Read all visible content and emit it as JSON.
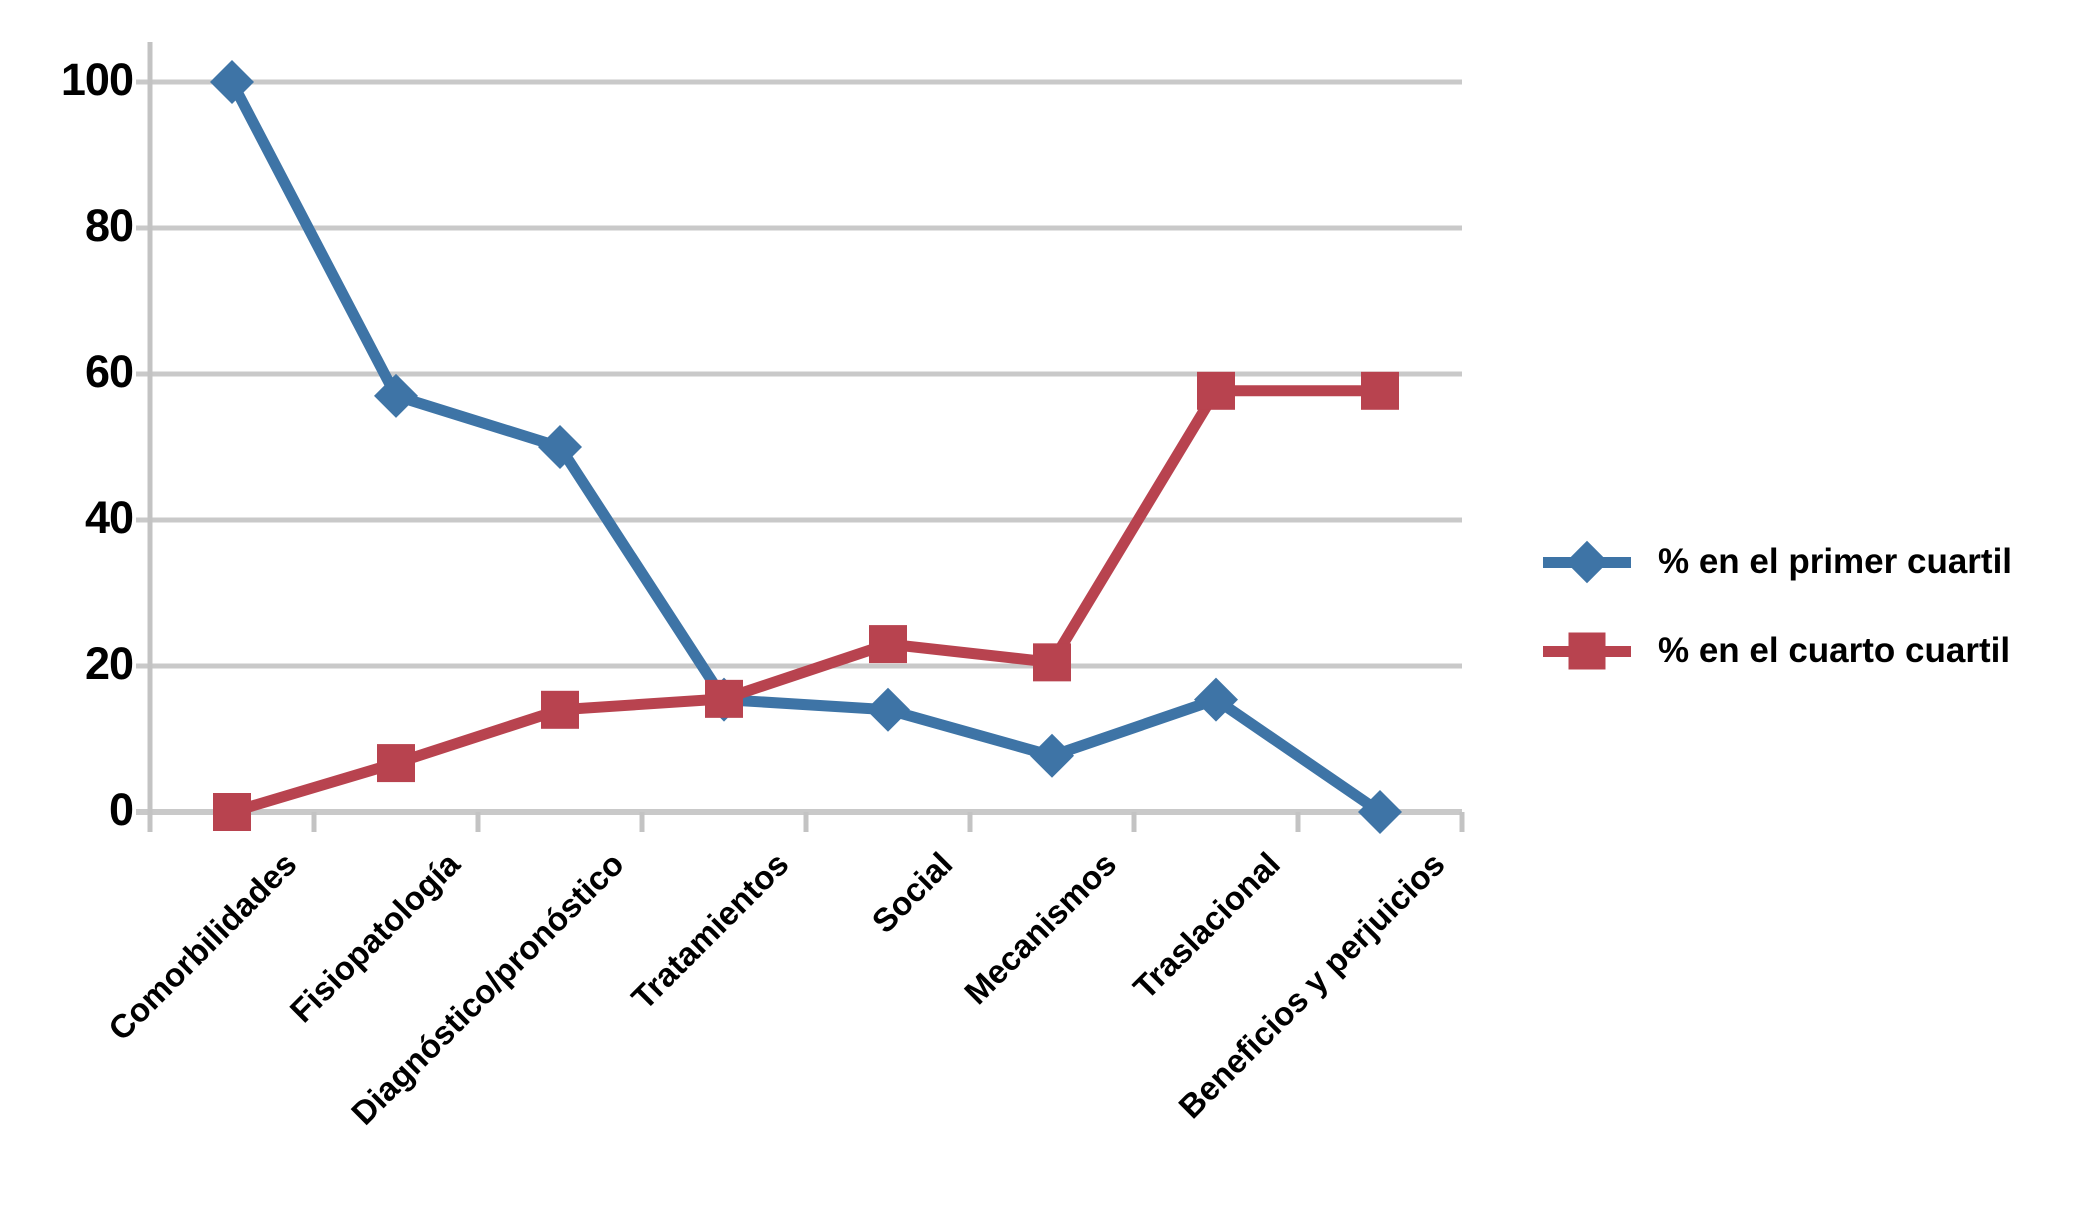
{
  "chart_data": {
    "type": "line",
    "title": "",
    "xlabel": "",
    "ylabel": "",
    "categories": [
      "Comorbilidades",
      "Fisiopatología",
      "Diagnóstico/pronóstico",
      "Tratamientos",
      "Social",
      "Mecanismos",
      "Traslacional",
      "Beneficios y perjuicios"
    ],
    "series": [
      {
        "name": "% en el primer cuartil",
        "marker": "diamond",
        "color": "#3E74A6",
        "values": [
          100,
          57,
          50,
          15.4,
          14,
          7.7,
          15.4,
          0
        ]
      },
      {
        "name": "% en el cuarto cuartil",
        "marker": "square",
        "color": "#B8434F",
        "values": [
          0,
          6.7,
          14,
          15.5,
          23,
          20.5,
          57.7,
          57.7
        ]
      }
    ],
    "ylim": [
      0,
      100
    ],
    "yticks": [
      0,
      20,
      40,
      60,
      80,
      100
    ],
    "grid": "horizontal",
    "legend_position": "right",
    "colors": {
      "gridline": "#C9C9C9",
      "axis": "#C3C3C3",
      "text": "#000000",
      "background": "#FFFFFF"
    }
  }
}
